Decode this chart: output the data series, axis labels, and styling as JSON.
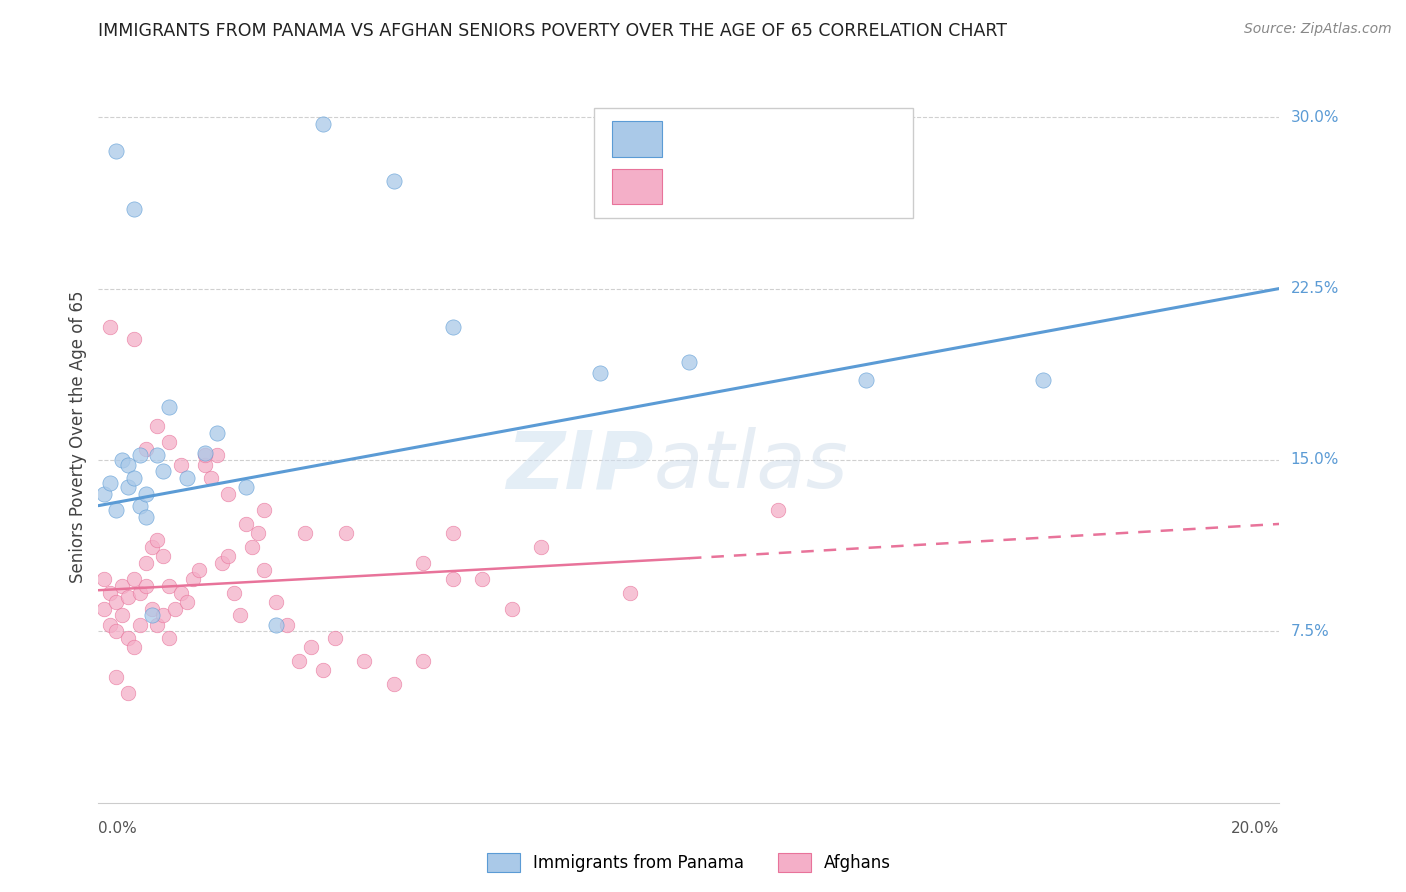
{
  "title": "IMMIGRANTS FROM PANAMA VS AFGHAN SENIORS POVERTY OVER THE AGE OF 65 CORRELATION CHART",
  "source": "Source: ZipAtlas.com",
  "ylabel": "Seniors Poverty Over the Age of 65",
  "xlim": [
    0.0,
    0.2
  ],
  "ylim": [
    0.0,
    0.32
  ],
  "yticks": [
    0.075,
    0.15,
    0.225,
    0.3
  ],
  "ytick_labels": [
    "7.5%",
    "15.0%",
    "22.5%",
    "30.0%"
  ],
  "blue_color": "#aac9e8",
  "pink_color": "#f4afc8",
  "line_blue_color": "#5b9bd5",
  "line_pink_color": "#e8739a",
  "legend_blue_label": "Immigrants from Panama",
  "legend_pink_label": "Afghans",
  "blue_trendline": [
    0.0,
    0.2,
    0.13,
    0.225
  ],
  "pink_trendline_solid": [
    0.0,
    0.1,
    0.093,
    0.107
  ],
  "pink_trendline_dash": [
    0.1,
    0.2,
    0.107,
    0.122
  ],
  "blue_x": [
    0.001,
    0.002,
    0.003,
    0.004,
    0.005,
    0.005,
    0.006,
    0.007,
    0.007,
    0.008,
    0.008,
    0.009,
    0.01,
    0.011,
    0.012,
    0.015,
    0.018,
    0.02,
    0.025,
    0.03,
    0.038,
    0.05,
    0.06,
    0.085,
    0.1,
    0.13,
    0.16,
    0.003,
    0.006
  ],
  "blue_y": [
    0.135,
    0.14,
    0.128,
    0.15,
    0.138,
    0.148,
    0.142,
    0.13,
    0.152,
    0.135,
    0.125,
    0.082,
    0.152,
    0.145,
    0.173,
    0.142,
    0.153,
    0.162,
    0.138,
    0.078,
    0.297,
    0.272,
    0.208,
    0.188,
    0.193,
    0.185,
    0.185,
    0.285,
    0.26
  ],
  "pink_x": [
    0.001,
    0.001,
    0.002,
    0.002,
    0.003,
    0.003,
    0.004,
    0.004,
    0.005,
    0.005,
    0.006,
    0.006,
    0.007,
    0.007,
    0.008,
    0.008,
    0.009,
    0.009,
    0.01,
    0.01,
    0.011,
    0.011,
    0.012,
    0.012,
    0.013,
    0.014,
    0.015,
    0.016,
    0.017,
    0.018,
    0.019,
    0.02,
    0.021,
    0.022,
    0.023,
    0.024,
    0.025,
    0.026,
    0.027,
    0.028,
    0.03,
    0.032,
    0.034,
    0.036,
    0.038,
    0.04,
    0.045,
    0.05,
    0.055,
    0.06,
    0.002,
    0.006,
    0.008,
    0.01,
    0.012,
    0.014,
    0.018,
    0.022,
    0.028,
    0.035,
    0.042,
    0.055,
    0.065,
    0.075,
    0.09,
    0.06,
    0.07,
    0.115,
    0.003,
    0.005
  ],
  "pink_y": [
    0.098,
    0.085,
    0.092,
    0.078,
    0.088,
    0.075,
    0.095,
    0.082,
    0.09,
    0.072,
    0.098,
    0.068,
    0.092,
    0.078,
    0.095,
    0.105,
    0.112,
    0.085,
    0.115,
    0.078,
    0.108,
    0.082,
    0.095,
    0.072,
    0.085,
    0.092,
    0.088,
    0.098,
    0.102,
    0.148,
    0.142,
    0.152,
    0.105,
    0.108,
    0.092,
    0.082,
    0.122,
    0.112,
    0.118,
    0.102,
    0.088,
    0.078,
    0.062,
    0.068,
    0.058,
    0.072,
    0.062,
    0.052,
    0.062,
    0.118,
    0.208,
    0.203,
    0.155,
    0.165,
    0.158,
    0.148,
    0.152,
    0.135,
    0.128,
    0.118,
    0.118,
    0.105,
    0.098,
    0.112,
    0.092,
    0.098,
    0.085,
    0.128,
    0.055,
    0.048
  ],
  "background_color": "#ffffff"
}
